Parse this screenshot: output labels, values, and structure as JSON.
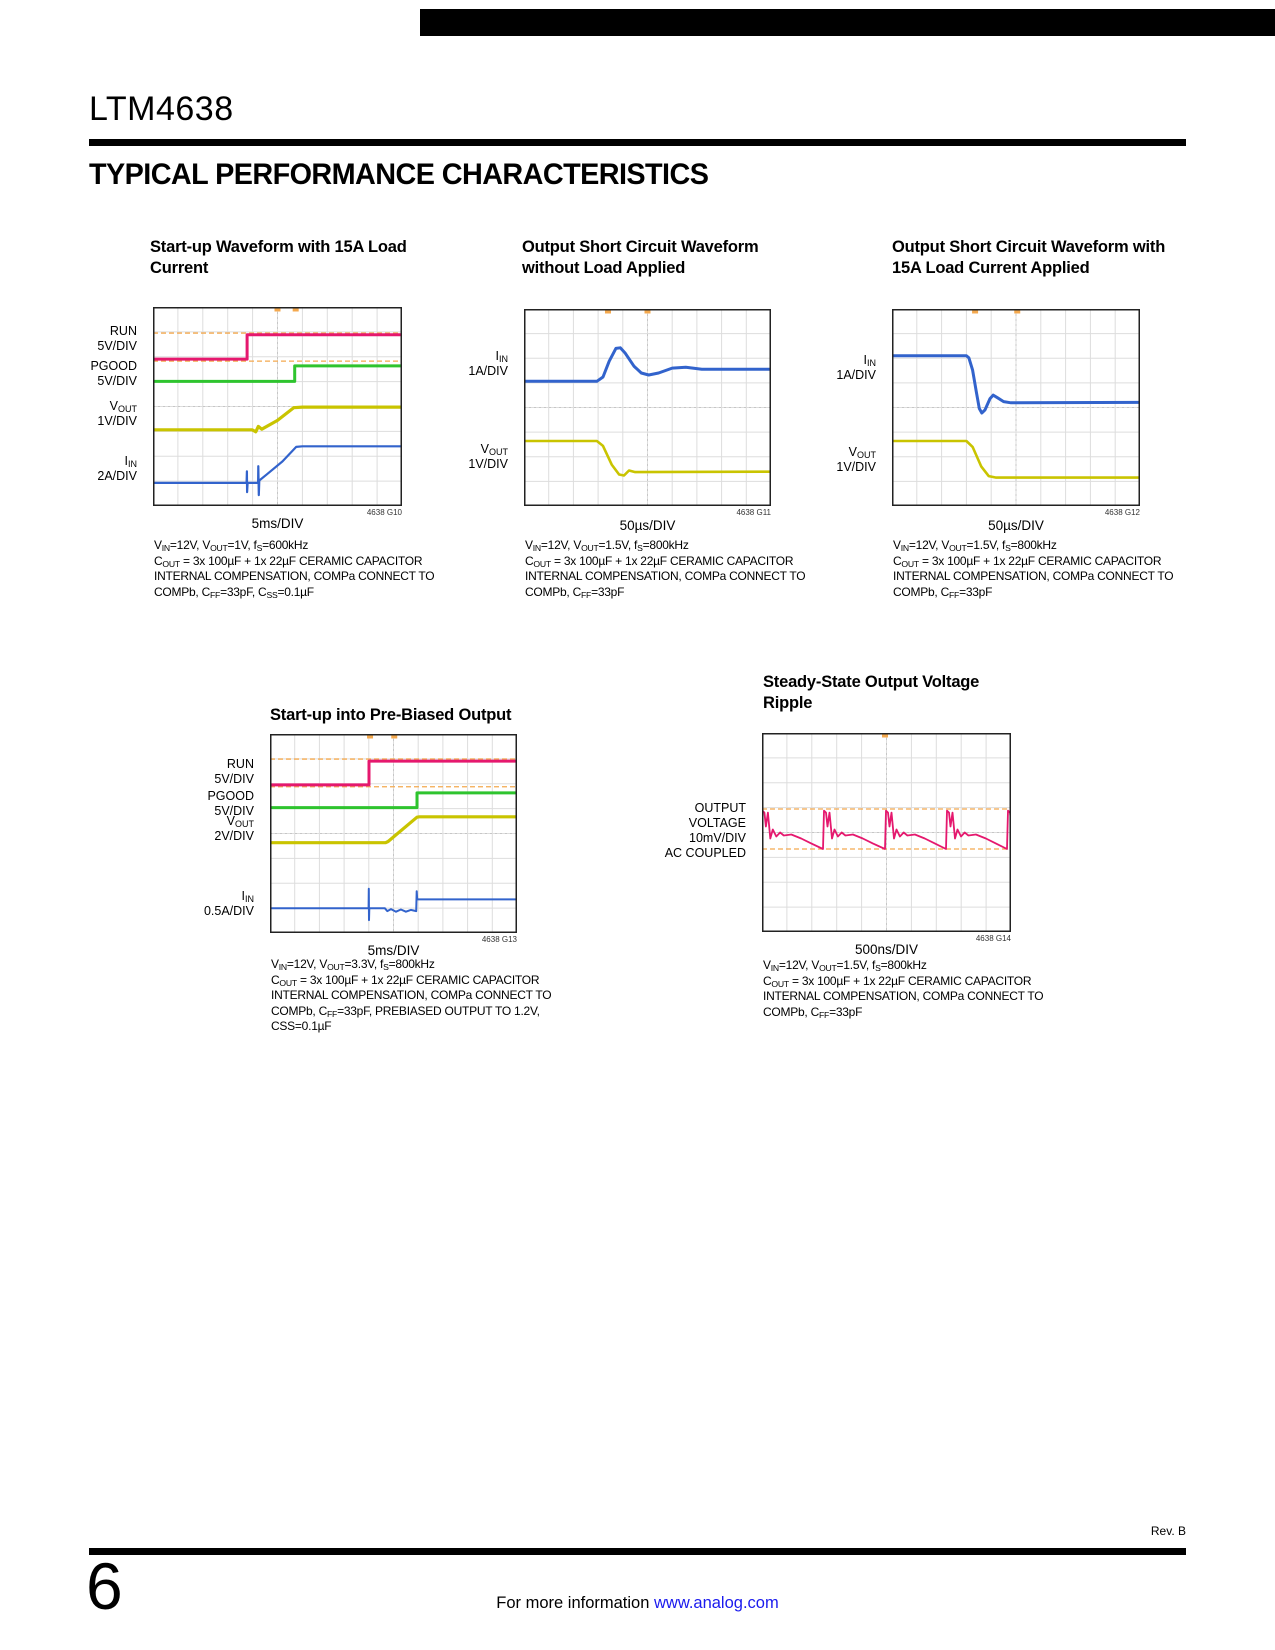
{
  "page": {
    "part_number": "LTM4638",
    "section_title": "TYPICAL PERFORMANCE CHARACTERISTICS",
    "footer": {
      "rev": "Rev. B",
      "page_number": "6",
      "info_text": "For more information ",
      "info_link": "www.analog.com"
    }
  },
  "colors": {
    "magenta": "#e5186e",
    "green": "#2ec42e",
    "yellow": "#c9c400",
    "blue": "#3263cc",
    "orange_ref": "#f4a94f",
    "grid": "#dddddd",
    "center": "#c6c6c6",
    "border": "#222222",
    "link_blue": "#1a1aee"
  },
  "chart_data": [
    {
      "type": "line",
      "title": "Start-up Waveform with 15A Load Current",
      "xlabel": "5ms/DIV",
      "graph_id": "4638 G10",
      "x_divisions": 10,
      "y_divisions": 8,
      "left_labels": [
        {
          "lines": [
            "RUN",
            "5V/DIV"
          ],
          "y_frac": 0.163
        },
        {
          "lines": [
            "PGOOD",
            "5V/DIV"
          ],
          "y_frac": 0.337
        },
        {
          "lines": [
            "V~OUT~",
            "1V/DIV"
          ],
          "y_frac": 0.54
        },
        {
          "lines": [
            "I~IN~",
            "2A/DIV"
          ],
          "y_frac": 0.812
        }
      ],
      "ref_lines": [
        0.131,
        0.272
      ],
      "triggers": [
        0.5,
        0.573
      ],
      "series": [
        {
          "name": "RUN",
          "color_key": "magenta",
          "width": 3,
          "points": [
            [
              0,
              0.262
            ],
            [
              0.378,
              0.262
            ],
            [
              0.378,
              0.139
            ],
            [
              1,
              0.139
            ]
          ]
        },
        {
          "name": "PGOOD",
          "color_key": "green",
          "width": 3,
          "points": [
            [
              0,
              0.374
            ],
            [
              0.569,
              0.374
            ],
            [
              0.569,
              0.296
            ],
            [
              1,
              0.296
            ]
          ]
        },
        {
          "name": "VOUT",
          "color_key": "yellow",
          "width": 3.2,
          "points": [
            [
              0,
              0.617
            ],
            [
              0.398,
              0.617
            ],
            [
              0.413,
              0.627
            ],
            [
              0.423,
              0.6
            ],
            [
              0.437,
              0.614
            ],
            [
              0.5,
              0.57
            ],
            [
              0.565,
              0.506
            ],
            [
              0.6,
              0.503
            ],
            [
              1,
              0.503
            ]
          ]
        },
        {
          "name": "IIN",
          "color_key": "blue",
          "width": 2.2,
          "points": [
            [
              0,
              0.884
            ],
            [
              0.376,
              0.884
            ],
            [
              0.377,
              0.826
            ],
            [
              0.378,
              0.93
            ],
            [
              0.38,
              0.884
            ],
            [
              0.422,
              0.884
            ],
            [
              0.423,
              0.8
            ],
            [
              0.425,
              0.945
            ],
            [
              0.427,
              0.872
            ],
            [
              0.46,
              0.838
            ],
            [
              0.52,
              0.776
            ],
            [
              0.575,
              0.703
            ],
            [
              0.6,
              0.7
            ],
            [
              1,
              0.7
            ]
          ]
        }
      ],
      "caption": [
        "V~IN~=12V, V~OUT~=1V, f~S~=600kHz",
        "C~OUT~ = 3x 100µF + 1x 22µF CERAMIC CAPACITOR",
        "INTERNAL COMPENSATION, COMPa CONNECT TO",
        "COMPb, C~FF~=33pF, C~SS~=0.1µF"
      ]
    },
    {
      "type": "line",
      "title": "Output Short Circuit Waveform without Load Applied",
      "xlabel": "50µs/DIV",
      "graph_id": "4638 G11",
      "x_divisions": 10,
      "y_divisions": 8,
      "left_labels": [
        {
          "lines": [
            "I~IN~",
            "1A/DIV"
          ],
          "y_frac": 0.278
        },
        {
          "lines": [
            "V~OUT~",
            "1V/DIV"
          ],
          "y_frac": 0.75
        }
      ],
      "ref_lines": [],
      "triggers": [
        0.34,
        0.5
      ],
      "series": [
        {
          "name": "IIN",
          "color_key": "blue",
          "width": 3,
          "points": [
            [
              0,
              0.367
            ],
            [
              0.295,
              0.367
            ],
            [
              0.32,
              0.345
            ],
            [
              0.345,
              0.265
            ],
            [
              0.372,
              0.2
            ],
            [
              0.39,
              0.197
            ],
            [
              0.41,
              0.225
            ],
            [
              0.445,
              0.29
            ],
            [
              0.475,
              0.325
            ],
            [
              0.505,
              0.335
            ],
            [
              0.545,
              0.325
            ],
            [
              0.6,
              0.3
            ],
            [
              0.655,
              0.296
            ],
            [
              0.72,
              0.306
            ],
            [
              1,
              0.306
            ]
          ]
        },
        {
          "name": "VOUT",
          "color_key": "yellow",
          "width": 2.6,
          "points": [
            [
              0,
              0.67
            ],
            [
              0.295,
              0.67
            ],
            [
              0.32,
              0.695
            ],
            [
              0.355,
              0.79
            ],
            [
              0.385,
              0.84
            ],
            [
              0.405,
              0.845
            ],
            [
              0.425,
              0.82
            ],
            [
              0.45,
              0.828
            ],
            [
              1,
              0.826
            ]
          ]
        }
      ],
      "caption": [
        "V~IN~=12V, V~OUT~=1.5V, f~S~=800kHz",
        "C~OUT~ = 3x 100µF + 1x 22µF CERAMIC CAPACITOR",
        "INTERNAL COMPENSATION, COMPa CONNECT TO",
        "COMPb, C~FF~=33pF"
      ]
    },
    {
      "type": "line",
      "title": "Output Short Circuit Waveform with 15A Load Current Applied",
      "xlabel": "50µs/DIV",
      "graph_id": "4638 G12",
      "x_divisions": 10,
      "y_divisions": 8,
      "left_labels": [
        {
          "lines": [
            "I~IN~",
            "1A/DIV"
          ],
          "y_frac": 0.3
        },
        {
          "lines": [
            "V~OUT~",
            "1V/DIV"
          ],
          "y_frac": 0.765
        }
      ],
      "ref_lines": [],
      "triggers": [
        0.335,
        0.505
      ],
      "series": [
        {
          "name": "IIN",
          "color_key": "blue",
          "width": 3,
          "points": [
            [
              0,
              0.237
            ],
            [
              0.3,
              0.237
            ],
            [
              0.31,
              0.248
            ],
            [
              0.325,
              0.31
            ],
            [
              0.34,
              0.42
            ],
            [
              0.352,
              0.505
            ],
            [
              0.362,
              0.528
            ],
            [
              0.375,
              0.512
            ],
            [
              0.395,
              0.455
            ],
            [
              0.408,
              0.437
            ],
            [
              0.425,
              0.45
            ],
            [
              0.45,
              0.47
            ],
            [
              0.48,
              0.476
            ],
            [
              1,
              0.474
            ]
          ]
        },
        {
          "name": "VOUT",
          "color_key": "yellow",
          "width": 2.6,
          "points": [
            [
              0,
              0.67
            ],
            [
              0.3,
              0.67
            ],
            [
              0.325,
              0.7
            ],
            [
              0.36,
              0.8
            ],
            [
              0.39,
              0.848
            ],
            [
              0.42,
              0.856
            ],
            [
              1,
              0.856
            ]
          ]
        }
      ],
      "caption": [
        "V~IN~=12V, V~OUT~=1.5V, f~S~=800kHz",
        "C~OUT~ = 3x 100µF + 1x 22µF CERAMIC CAPACITOR",
        "INTERNAL COMPENSATION, COMPa CONNECT TO",
        "COMPb, C~FF~=33pF"
      ]
    },
    {
      "type": "line",
      "title": "Start-up into Pre-Biased Output",
      "xlabel": "5ms/DIV",
      "graph_id": "4638 G13",
      "x_divisions": 10,
      "y_divisions": 8,
      "left_labels": [
        {
          "lines": [
            "RUN",
            "5V/DIV"
          ],
          "y_frac": 0.19
        },
        {
          "lines": [
            "PGOOD",
            "5V/DIV"
          ],
          "y_frac": 0.35
        },
        {
          "lines": [
            "V~OUT~",
            "2V/DIV"
          ],
          "y_frac": 0.475
        },
        {
          "lines": [
            "I~IN~",
            "0.5A/DIV"
          ],
          "y_frac": 0.855
        }
      ],
      "ref_lines": [
        0.126,
        0.265
      ],
      "triggers": [
        0.405,
        0.503
      ],
      "series": [
        {
          "name": "RUN",
          "color_key": "magenta",
          "width": 3,
          "points": [
            [
              0,
              0.256
            ],
            [
              0.401,
              0.256
            ],
            [
              0.401,
              0.136
            ],
            [
              1,
              0.136
            ]
          ]
        },
        {
          "name": "PGOOD",
          "color_key": "green",
          "width": 3,
          "points": [
            [
              0,
              0.37
            ],
            [
              0.595,
              0.37
            ],
            [
              0.595,
              0.296
            ],
            [
              1,
              0.296
            ]
          ]
        },
        {
          "name": "VOUT",
          "color_key": "yellow",
          "width": 3.2,
          "points": [
            [
              0,
              0.546
            ],
            [
              0.468,
              0.546
            ],
            [
              0.478,
              0.54
            ],
            [
              0.595,
              0.418
            ],
            [
              0.605,
              0.416
            ],
            [
              1,
              0.416
            ]
          ]
        },
        {
          "name": "IIN",
          "color_key": "blue",
          "width": 2,
          "points": [
            [
              0,
              0.876
            ],
            [
              0.399,
              0.876
            ],
            [
              0.4,
              0.778
            ],
            [
              0.401,
              0.935
            ],
            [
              0.402,
              0.876
            ],
            [
              0.465,
              0.876
            ],
            [
              0.475,
              0.89
            ],
            [
              0.49,
              0.88
            ],
            [
              0.51,
              0.893
            ],
            [
              0.53,
              0.882
            ],
            [
              0.55,
              0.893
            ],
            [
              0.57,
              0.884
            ],
            [
              0.592,
              0.89
            ],
            [
              0.594,
              0.79
            ],
            [
              0.596,
              0.831
            ],
            [
              1,
              0.831
            ]
          ]
        }
      ],
      "caption": [
        "V~IN~=12V, V~OUT~=3.3V, f~S~=800kHz",
        "C~OUT~ = 3x 100µF + 1x 22µF CERAMIC CAPACITOR",
        "INTERNAL COMPENSATION, COMPa CONNECT TO",
        "COMPb, C~FF~=33pF, PREBIASED OUTPUT TO 1.2V,",
        "CSS=0.1µF"
      ]
    },
    {
      "type": "line",
      "title": "Steady-State Output Voltage Ripple",
      "xlabel": "500ns/DIV",
      "graph_id": "4638 G14",
      "x_divisions": 10,
      "y_divisions": 8,
      "left_labels": [
        {
          "lines": [
            "OUTPUT",
            "VOLTAGE",
            "10mV/DIV",
            "AC COUPLED"
          ],
          "y_frac": 0.49
        }
      ],
      "ref_lines": [
        0.382,
        0.583
      ],
      "triggers": [
        0.494
      ],
      "series": [
        {
          "name": "OUTPUT VOLTAGE RIPPLE",
          "color_key": "magenta",
          "width": 1.8,
          "points": [
            [
              0,
              0.46
            ],
            [
              0.0015,
              0.39
            ],
            [
              0.0095,
              0.4
            ],
            [
              0.0155,
              0.47
            ],
            [
              0.0235,
              0.4
            ],
            [
              0.0335,
              0.53
            ],
            [
              0.0435,
              0.485
            ],
            [
              0.0575,
              0.52
            ],
            [
              0.0725,
              0.5
            ],
            [
              0.0875,
              0.515
            ],
            [
              0.1175,
              0.51
            ],
            [
              0.1575,
              0.53
            ],
            [
              0.1975,
              0.555
            ],
            [
              0.245,
              0.583
            ],
            [
              0.249,
              0.39
            ],
            [
              0.257,
              0.4
            ],
            [
              0.263,
              0.47
            ],
            [
              0.271,
              0.4
            ],
            [
              0.281,
              0.53
            ],
            [
              0.291,
              0.485
            ],
            [
              0.305,
              0.52
            ],
            [
              0.32,
              0.5
            ],
            [
              0.335,
              0.515
            ],
            [
              0.365,
              0.51
            ],
            [
              0.405,
              0.53
            ],
            [
              0.445,
              0.555
            ],
            [
              0.494,
              0.583
            ],
            [
              0.498,
              0.39
            ],
            [
              0.506,
              0.4
            ],
            [
              0.512,
              0.47
            ],
            [
              0.52,
              0.4
            ],
            [
              0.53,
              0.53
            ],
            [
              0.54,
              0.485
            ],
            [
              0.554,
              0.52
            ],
            [
              0.569,
              0.5
            ],
            [
              0.584,
              0.515
            ],
            [
              0.614,
              0.51
            ],
            [
              0.654,
              0.53
            ],
            [
              0.694,
              0.555
            ],
            [
              0.739,
              0.583
            ],
            [
              0.743,
              0.39
            ],
            [
              0.751,
              0.4
            ],
            [
              0.757,
              0.47
            ],
            [
              0.765,
              0.4
            ],
            [
              0.775,
              0.53
            ],
            [
              0.785,
              0.485
            ],
            [
              0.799,
              0.52
            ],
            [
              0.814,
              0.5
            ],
            [
              0.829,
              0.515
            ],
            [
              0.859,
              0.51
            ],
            [
              0.899,
              0.53
            ],
            [
              0.939,
              0.555
            ],
            [
              0.984,
              0.583
            ],
            [
              0.988,
              0.39
            ],
            [
              0.996,
              0.4
            ],
            [
              1,
              0.44
            ]
          ]
        }
      ],
      "caption": [
        "V~IN~=12V, V~OUT~=1.5V, f~S~=800kHz",
        "C~OUT~ = 3x 100µF + 1x 22µF CERAMIC CAPACITOR",
        "INTERNAL COMPENSATION, COMPa CONNECT TO",
        "COMPb, C~FF~=33pF"
      ]
    }
  ]
}
